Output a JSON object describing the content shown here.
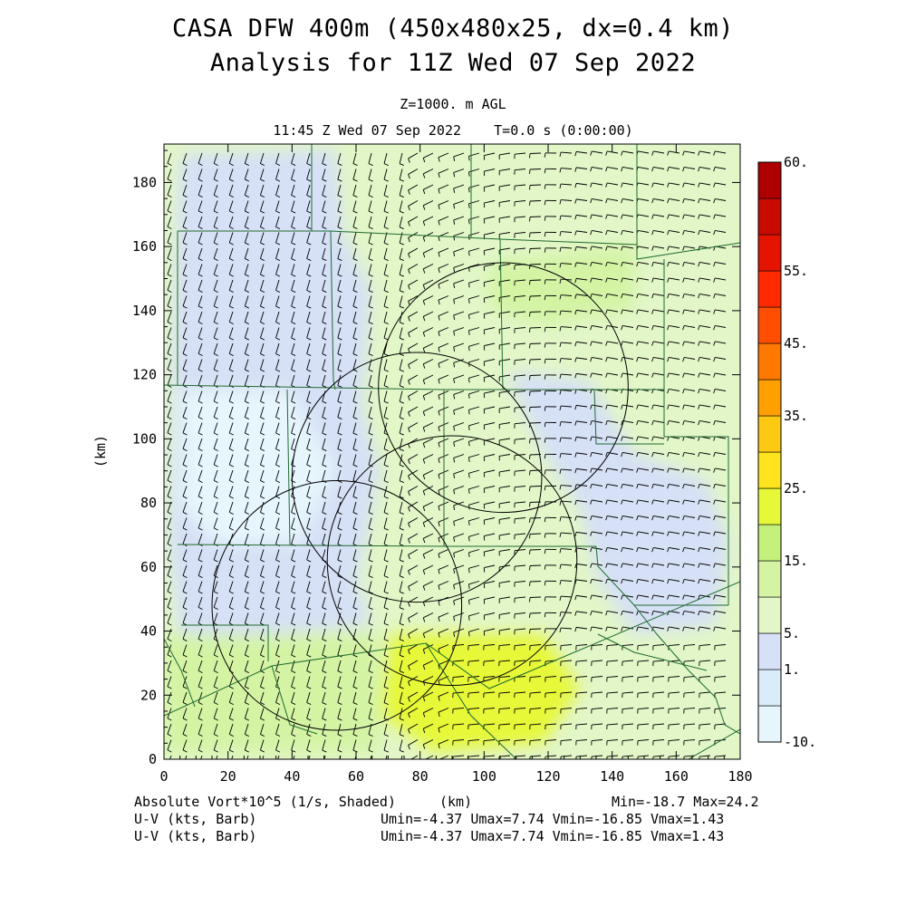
{
  "header": {
    "title_line1": "CASA DFW 400m (450x480x25, dx=0.4 km)",
    "title_line2": "Analysis for 11Z Wed 07 Sep 2022",
    "level": "Z=1000. m AGL",
    "valid_time": "11:45 Z Wed 07 Sep 2022    T=0.0 s (0:00:00)"
  },
  "footer": {
    "field_label": "Absolute Vort*10^5 (1/s, Shaded)",
    "xunits": "(km)",
    "minmax": "Min=-18.7 Max=24.2",
    "uv_label_1": "U-V (kts, Barb)",
    "uv_stats_1": "Umin=-4.37 Umax=7.74 Vmin=-16.85 Vmax=1.43",
    "uv_label_2": "U-V (kts, Barb)",
    "uv_stats_2": "Umin=-4.37 Umax=7.74 Vmin=-16.85 Vmax=1.43"
  },
  "chart_data": {
    "type": "heatmap",
    "title": "CASA DFW 400m (450x480x25, dx=0.4 km)",
    "subtitle": "Analysis for 11Z Wed 07 Sep 2022",
    "xlabel": "(km)",
    "ylabel": "(km)",
    "xlim": [
      0,
      180
    ],
    "ylim": [
      0,
      192
    ],
    "xticks": [
      0,
      20,
      40,
      60,
      80,
      100,
      120,
      140,
      160,
      180
    ],
    "yticks": [
      0,
      20,
      40,
      60,
      80,
      100,
      120,
      140,
      160,
      180
    ],
    "field": "Absolute Vort*10^5 (1/s, Shaded)",
    "min": -18.7,
    "max": 24.2,
    "colorbar": {
      "labels": [
        "-10.",
        "1.",
        "5.",
        "15.",
        "25.",
        "35.",
        "45.",
        "55.",
        "60."
      ],
      "colors": [
        "#e6f6fc",
        "#d8ecfa",
        "#d6e0f6",
        "#e2f6c8",
        "#d4f4a4",
        "#c4f07c",
        "#e6f838",
        "#ffe31e",
        "#ffc812",
        "#ffa000",
        "#ff7800",
        "#ff4e00",
        "#ff2a00",
        "#e41400",
        "#c80a00",
        "#ae0000"
      ]
    },
    "radar_rings": [
      {
        "center": [
          106,
          116
        ],
        "radius": 39
      },
      {
        "center": [
          79,
          88
        ],
        "radius": 39
      },
      {
        "center": [
          90,
          62
        ],
        "radius": 39
      },
      {
        "center": [
          54,
          48
        ],
        "radius": 39
      }
    ],
    "barbs": "U-V (kts, Barb)",
    "umin": -4.37,
    "umax": 7.74,
    "vmin": -16.85,
    "vmax": 1.43
  }
}
